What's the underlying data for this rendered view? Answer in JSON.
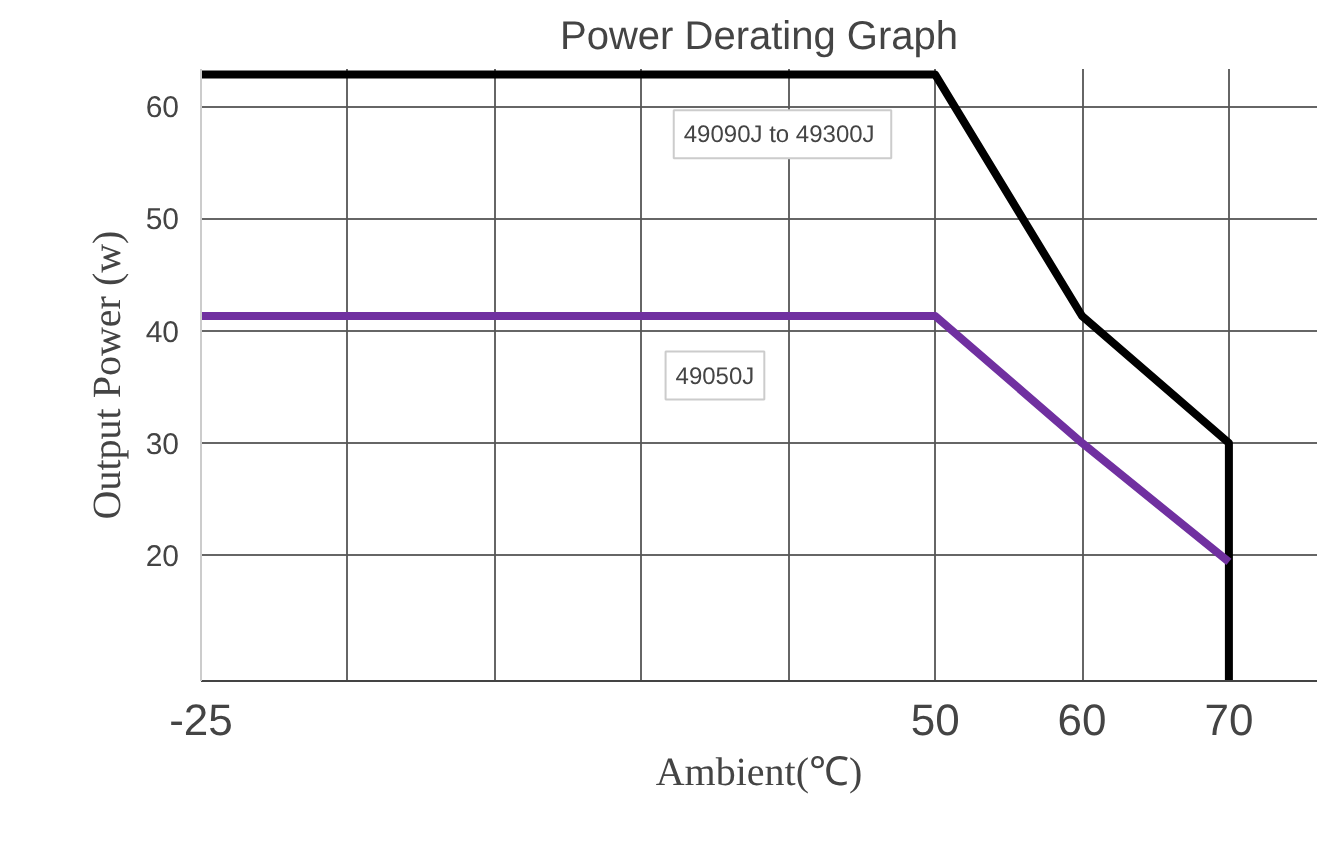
{
  "chart_data": {
    "type": "line",
    "title": "Power Derating Graph",
    "xlabel": "Ambient(℃)",
    "ylabel": "Output Power (w)",
    "categories": [
      "-25",
      null,
      null,
      null,
      null,
      "50",
      "60",
      "70"
    ],
    "series": [
      {
        "name": "49090J  to 49300J",
        "color": "#000000",
        "x": [
          "-25",
          "50",
          "60",
          "70",
          "70"
        ],
        "values": [
          62.8,
          62.8,
          41.3,
          30,
          8.8
        ]
      },
      {
        "name": "49050J",
        "color": "#7030a0",
        "x": [
          "-25",
          "50",
          "60",
          "70"
        ],
        "values": [
          41.3,
          41.3,
          30,
          19.4
        ]
      }
    ],
    "ylim": [
      8.8,
      63.3
    ],
    "yticks": [
      20,
      30,
      40,
      50,
      60
    ],
    "grid": true,
    "marker": "none",
    "line_style": "solid"
  }
}
